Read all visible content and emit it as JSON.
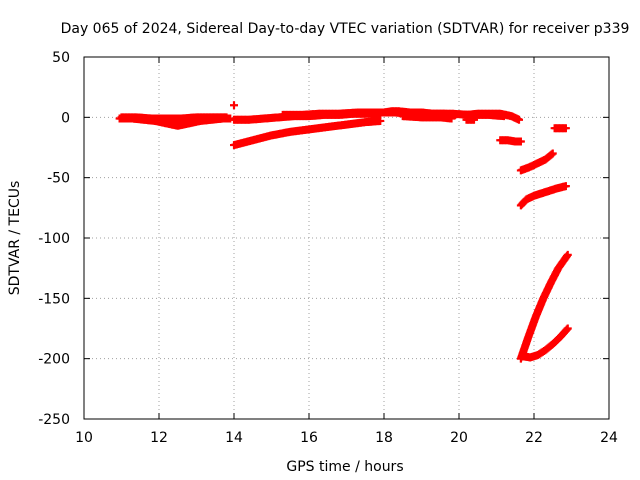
{
  "chart_data": {
    "type": "scatter",
    "title": "Day 065 of 2024, Sidereal Day-to-day VTEC variation (SDTVAR) for receiver p339",
    "xlabel": "GPS time / hours",
    "ylabel": "SDTVAR / TECUs",
    "xlim": [
      10,
      24
    ],
    "ylim": [
      -250,
      50
    ],
    "xticks": [
      10,
      12,
      14,
      16,
      18,
      20,
      22,
      24
    ],
    "yticks": [
      -250,
      -200,
      -150,
      -100,
      -50,
      0,
      50
    ],
    "grid": true,
    "legend": "none",
    "marker_color": "#ff0000",
    "marker": "plus",
    "series": [
      {
        "tracks": [
          {
            "x": [
              10.95,
              11.3,
              11.6,
              11.9,
              12.2,
              12.5,
              12.8,
              13.1,
              13.4,
              13.7,
              13.9
            ],
            "y": [
              -1,
              -1,
              -2,
              -3,
              -5,
              -7,
              -5,
              -3,
              -2,
              -1,
              -1
            ]
          },
          {
            "x": [
              11.0,
              11.4,
              11.8,
              12.2,
              12.6,
              13.0,
              13.4,
              13.8
            ],
            "y": [
              0,
              0,
              -1,
              -1,
              -1,
              0,
              0,
              0
            ]
          },
          {
            "x": [
              14.0,
              14.4,
              14.8,
              15.2,
              15.6,
              16.0,
              16.4,
              16.8,
              17.2,
              17.6,
              17.9
            ],
            "y": [
              -2,
              -2,
              -1,
              0,
              1,
              1,
              2,
              2,
              3,
              3,
              2
            ]
          },
          {
            "x": [
              15.3,
              15.8,
              16.3,
              16.8,
              17.3,
              17.8,
              18.3,
              18.8,
              19.3,
              19.8,
              20.3,
              20.8,
              21.2
            ],
            "y": [
              2,
              2,
              3,
              3,
              4,
              4,
              4,
              3,
              3,
              3,
              2,
              2,
              1
            ]
          },
          {
            "x": [
              18.0,
              18.2,
              18.4,
              18.7,
              19.0,
              19.3,
              19.6,
              19.9
            ],
            "y": [
              4,
              5,
              5,
              4,
              4,
              3,
              3,
              2
            ]
          },
          {
            "x": [
              20.2,
              20.5,
              20.8,
              21.1,
              21.4,
              21.6
            ],
            "y": [
              2,
              3,
              3,
              3,
              1,
              -2
            ]
          },
          {
            "x": [
              18.5,
              19.0,
              19.5,
              19.8
            ],
            "y": [
              1,
              0,
              0,
              -1
            ]
          },
          {
            "x": [
              20.2,
              20.4
            ],
            "y": [
              -2,
              -2
            ]
          },
          {
            "x": [
              14.0,
              14.5,
              15.0,
              15.5,
              16.0,
              16.5,
              17.0,
              17.5,
              17.9
            ],
            "y": [
              -23,
              -19,
              -15,
              -12,
              -10,
              -8,
              -6,
              -4,
              -3
            ]
          },
          {
            "x": [
              14.0
            ],
            "y": [
              10
            ]
          },
          {
            "x": [
              21.1,
              21.3,
              21.5,
              21.65
            ],
            "y": [
              -19,
              -19,
              -20,
              -20
            ]
          },
          {
            "x": [
              21.65,
              21.9,
              22.1,
              22.3,
              22.5
            ],
            "y": [
              -44,
              -41,
              -38,
              -35,
              -30
            ]
          },
          {
            "x": [
              22.55,
              22.7,
              22.85
            ],
            "y": [
              -9,
              -9,
              -9
            ]
          },
          {
            "x": [
              21.65,
              21.8,
              22.0,
              22.2,
              22.4,
              22.6,
              22.85
            ],
            "y": [
              -73,
              -68,
              -65,
              -63,
              -61,
              -59,
              -57
            ]
          },
          {
            "x": [
              21.65,
              21.85,
              22.05,
              22.25,
              22.45,
              22.65,
              22.9
            ],
            "y": [
              -200,
              -182,
              -165,
              -150,
              -137,
              -125,
              -114
            ]
          },
          {
            "x": [
              21.7,
              21.9,
              22.1,
              22.3,
              22.5,
              22.7,
              22.9
            ],
            "y": [
              -198,
              -199,
              -197,
              -193,
              -188,
              -182,
              -175
            ]
          }
        ]
      }
    ]
  }
}
